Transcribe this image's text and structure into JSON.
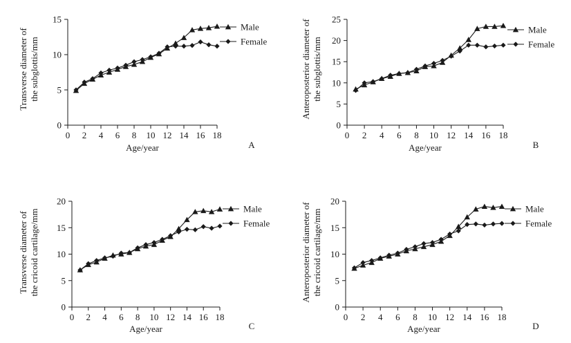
{
  "figure": {
    "colors": {
      "line": "#1a1a1a",
      "background": "#ffffff"
    },
    "legend_marker_icons": {
      "male": "triangle-marker-icon",
      "female": "diamond-marker-icon"
    }
  },
  "chart_data": [
    {
      "type": "line",
      "panel_label": "A",
      "title": "",
      "xlabel": "Age/year",
      "ylabel_lines": [
        "Transverse diameter of",
        "the subglottis/mm"
      ],
      "xlim": [
        0,
        18
      ],
      "ylim": [
        0,
        15
      ],
      "xticks": [
        0,
        2,
        4,
        6,
        8,
        10,
        12,
        14,
        16,
        18
      ],
      "yticks": [
        0,
        5,
        10,
        15
      ],
      "grid": false,
      "legend_position": "top-right",
      "x": [
        1,
        2,
        3,
        4,
        5,
        6,
        7,
        8,
        9,
        10,
        11,
        12,
        13,
        14,
        15,
        16,
        17,
        18
      ],
      "series": [
        {
          "name": "Male",
          "marker": "triangle",
          "values": [
            4.9,
            5.9,
            6.5,
            7.1,
            7.5,
            7.9,
            8.3,
            8.6,
            9.0,
            9.6,
            10.1,
            10.9,
            11.6,
            12.4,
            13.5,
            13.7,
            13.8,
            14.0
          ]
        },
        {
          "name": "Female",
          "marker": "diamond",
          "values": [
            5.0,
            6.1,
            6.6,
            7.4,
            7.8,
            8.1,
            8.5,
            9.0,
            9.3,
            9.7,
            10.2,
            11.1,
            11.2,
            11.2,
            11.3,
            11.8,
            11.4,
            11.2
          ]
        }
      ]
    },
    {
      "type": "line",
      "panel_label": "B",
      "title": "",
      "xlabel": "Age/year",
      "ylabel_lines": [
        "Anteroposterior diameter of",
        "the subglottis/mm"
      ],
      "xlim": [
        0,
        18
      ],
      "ylim": [
        0,
        25
      ],
      "xticks": [
        0,
        2,
        4,
        6,
        8,
        10,
        12,
        14,
        16,
        18
      ],
      "yticks": [
        0,
        5,
        10,
        15,
        20,
        25
      ],
      "grid": false,
      "legend_position": "top-right",
      "x": [
        1,
        2,
        3,
        4,
        5,
        6,
        7,
        8,
        9,
        10,
        11,
        12,
        13,
        14,
        15,
        16,
        17,
        18
      ],
      "series": [
        {
          "name": "Male",
          "marker": "triangle",
          "values": [
            8.5,
            9.5,
            10.2,
            11.0,
            11.5,
            12.2,
            12.4,
            12.8,
            13.8,
            14.0,
            14.8,
            16.5,
            18.2,
            20.2,
            22.8,
            23.3,
            23.3,
            23.5
          ]
        },
        {
          "name": "Female",
          "marker": "diamond",
          "values": [
            8.2,
            10.0,
            10.3,
            11.0,
            11.8,
            12.2,
            12.4,
            13.2,
            14.0,
            14.6,
            15.3,
            16.3,
            17.5,
            18.9,
            18.9,
            18.5,
            18.7,
            18.9
          ]
        }
      ]
    },
    {
      "type": "line",
      "panel_label": "C",
      "title": "",
      "xlabel": "Age/year",
      "ylabel_lines": [
        "Transverse diameter of",
        "the cricoid cartilage/mm"
      ],
      "xlim": [
        0,
        18
      ],
      "ylim": [
        0,
        20
      ],
      "xticks": [
        0,
        2,
        4,
        6,
        8,
        10,
        12,
        14,
        16,
        18
      ],
      "yticks": [
        0,
        5,
        10,
        15,
        20
      ],
      "grid": false,
      "legend_position": "top-right",
      "x": [
        1,
        2,
        3,
        4,
        5,
        6,
        7,
        8,
        9,
        10,
        11,
        12,
        13,
        14,
        15,
        16,
        17,
        18
      ],
      "series": [
        {
          "name": "Male",
          "marker": "triangle",
          "values": [
            7.0,
            8.0,
            8.5,
            9.2,
            9.8,
            10.0,
            10.3,
            11.0,
            11.5,
            11.8,
            12.6,
            13.3,
            14.8,
            16.5,
            18.0,
            18.2,
            18.0,
            18.5
          ]
        },
        {
          "name": "Female",
          "marker": "diamond",
          "values": [
            7.0,
            8.2,
            8.8,
            9.3,
            9.6,
            10.2,
            10.3,
            11.2,
            11.8,
            12.2,
            12.8,
            13.5,
            14.2,
            14.7,
            14.6,
            15.2,
            14.9,
            15.3
          ]
        }
      ]
    },
    {
      "type": "line",
      "panel_label": "D",
      "title": "",
      "xlabel": "Age/year",
      "ylabel_lines": [
        "Anteroposterior diameter of",
        "the cricoid cartilage/mm"
      ],
      "xlim": [
        0,
        18
      ],
      "ylim": [
        0,
        20
      ],
      "xticks": [
        0,
        2,
        4,
        6,
        8,
        10,
        12,
        14,
        16,
        18
      ],
      "yticks": [
        0,
        5,
        10,
        15,
        20
      ],
      "grid": false,
      "legend_position": "top-right",
      "x": [
        1,
        2,
        3,
        4,
        5,
        6,
        7,
        8,
        9,
        10,
        11,
        12,
        13,
        14,
        15,
        16,
        17,
        18
      ],
      "series": [
        {
          "name": "Male",
          "marker": "triangle",
          "values": [
            7.3,
            7.9,
            8.4,
            9.2,
            9.6,
            10.0,
            10.6,
            11.0,
            11.4,
            11.8,
            12.4,
            13.5,
            15.2,
            17.0,
            18.5,
            19.0,
            18.8,
            19.0
          ]
        },
        {
          "name": "Female",
          "marker": "diamond",
          "values": [
            7.4,
            8.4,
            8.8,
            9.3,
            9.8,
            10.2,
            10.9,
            11.4,
            12.0,
            12.2,
            12.8,
            13.8,
            14.4,
            15.6,
            15.7,
            15.5,
            15.7,
            15.8
          ]
        }
      ]
    }
  ]
}
